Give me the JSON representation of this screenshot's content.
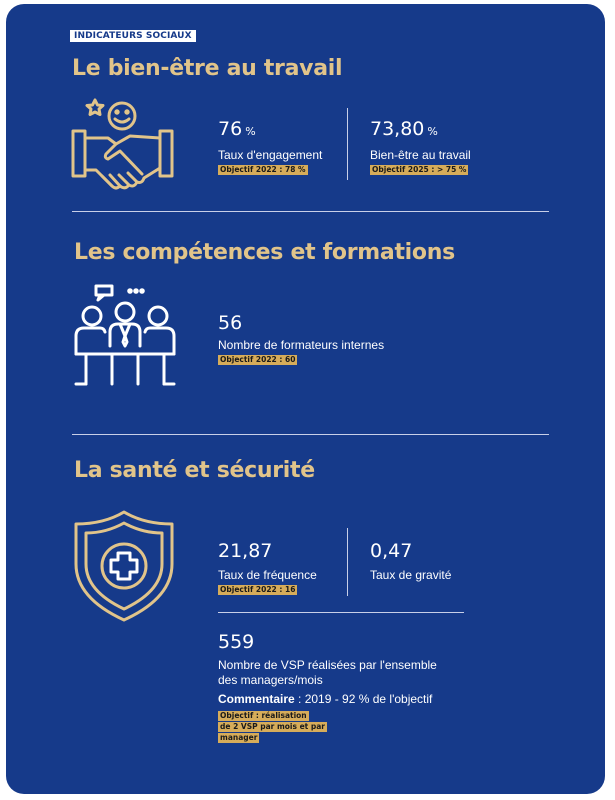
{
  "tag": "INDICATEURS SOCIAUX",
  "colors": {
    "background": "#163a8a",
    "accent": "#e1c48a",
    "objective_bg": "#d6ac5a"
  },
  "section_wellbeing": {
    "title": "Le bien-être au travail",
    "icon": "handshake-smile-icon",
    "stats": [
      {
        "value": "76",
        "unit": "%",
        "label": "Taux d'engagement",
        "objective": "Objectif 2022 : 78 %"
      },
      {
        "value": "73,80",
        "unit": "%",
        "label": "Bien-être au travail",
        "objective": "Objectif 2025 : > 75 %"
      }
    ]
  },
  "section_skills": {
    "title": "Les compétences et formations",
    "icon": "meeting-people-icon",
    "stat": {
      "value": "56",
      "label": "Nombre de formateurs internes",
      "objective": "Objectif 2022 : 60"
    }
  },
  "section_health": {
    "title": "La santé et sécurité",
    "icon": "shield-cross-icon",
    "stats": [
      {
        "value": "21,87",
        "label": "Taux de fréquence",
        "objective": "Objectif 2022 : 16"
      },
      {
        "value": "0,47",
        "label": "Taux de gravité"
      }
    ],
    "vsp": {
      "value": "559",
      "label_line1": "Nombre de VSP réalisées par l'ensemble",
      "label_line2": "des managers/mois",
      "comment_label": "Commentaire",
      "comment_text": " : 2019 - 92 % de l'objectif",
      "objective_lines": [
        "Objectif : réalisation",
        "de 2 VSP par mois et par",
        "manager"
      ]
    }
  }
}
